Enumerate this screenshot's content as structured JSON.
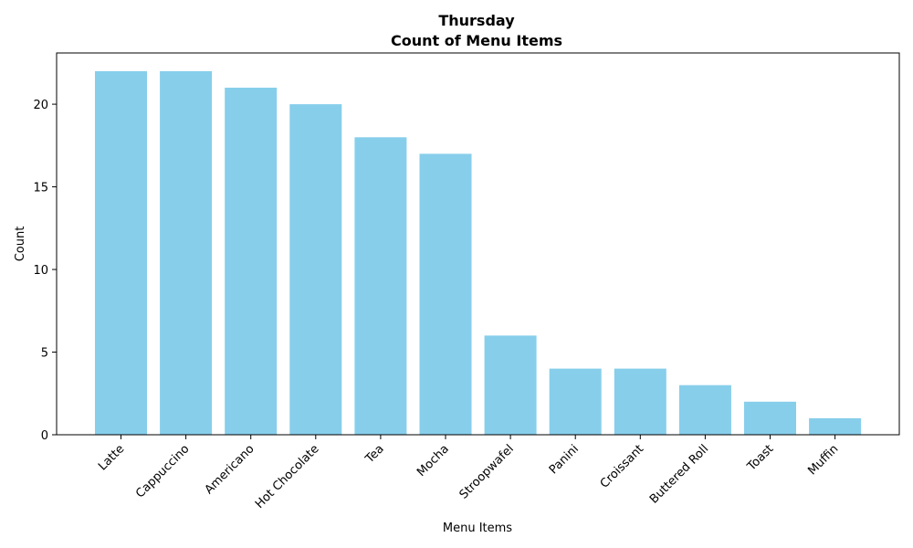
{
  "chart_data": {
    "type": "bar",
    "title": "Thursday",
    "subtitle": "Count of Menu Items",
    "xlabel": "Menu Items",
    "ylabel": "Count",
    "categories": [
      "Latte",
      "Cappuccino",
      "Americano",
      "Hot Chocolate",
      "Tea",
      "Mocha",
      "Stroopwafel",
      "Panini",
      "Croissant",
      "Buttered Roll",
      "Toast",
      "Muffin"
    ],
    "values": [
      22,
      22,
      21,
      20,
      18,
      17,
      6,
      4,
      4,
      3,
      2,
      1
    ],
    "ylim": [
      0,
      23.1
    ],
    "yticks": [
      0,
      5,
      10,
      15,
      20
    ],
    "bar_color": "#87ceeb",
    "grid": false,
    "legend": "none"
  }
}
